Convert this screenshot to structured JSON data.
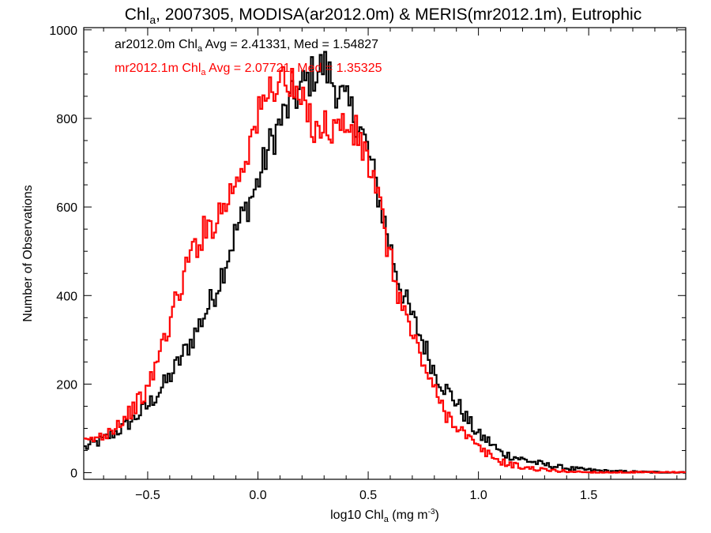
{
  "chart_data": {
    "type": "line",
    "title": {
      "main": "Chl",
      "sub": "a",
      "rest": ", 2007305, MODISA(ar2012.0m) & MERIS(mr2012.1m), Eutrophic"
    },
    "xlabel": {
      "main": "log10 Chl",
      "sub": "a",
      "rest": " (mg m",
      "sup": "-3",
      "end": ")"
    },
    "ylabel": "Number of Observations",
    "xlim": [
      -0.79,
      1.94
    ],
    "ylim": [
      -15,
      1005
    ],
    "x_ticks": [
      -0.5,
      0.0,
      0.5,
      1.0,
      1.5
    ],
    "x_tick_labels": [
      "−0.5",
      "0.0",
      "0.5",
      "1.0",
      "1.5"
    ],
    "y_ticks": [
      0,
      200,
      400,
      600,
      800,
      1000
    ],
    "y_tick_labels": [
      "0",
      "200",
      "400",
      "600",
      "800",
      "1000"
    ],
    "step_histogram": true,
    "series": [
      {
        "name": "ar2012.0m",
        "color": "#000000",
        "stats_label": {
          "prefix": "ar2012.0m Chl",
          "sub": "a",
          "rest": " Avg = 2.41331, Med = 1.54827"
        },
        "points": [
          [
            -0.79,
            55
          ],
          [
            -0.7,
            75
          ],
          [
            -0.6,
            105
          ],
          [
            -0.5,
            150
          ],
          [
            -0.4,
            215
          ],
          [
            -0.3,
            300
          ],
          [
            -0.2,
            400
          ],
          [
            -0.15,
            470
          ],
          [
            -0.1,
            545
          ],
          [
            -0.05,
            600
          ],
          [
            0.0,
            655
          ],
          [
            0.05,
            735
          ],
          [
            0.1,
            790
          ],
          [
            0.15,
            835
          ],
          [
            0.2,
            870
          ],
          [
            0.25,
            900
          ],
          [
            0.3,
            920
          ],
          [
            0.35,
            875
          ],
          [
            0.4,
            830
          ],
          [
            0.45,
            800
          ],
          [
            0.5,
            725
          ],
          [
            0.55,
            620
          ],
          [
            0.6,
            510
          ],
          [
            0.65,
            415
          ],
          [
            0.7,
            350
          ],
          [
            0.75,
            295
          ],
          [
            0.8,
            230
          ],
          [
            0.85,
            190
          ],
          [
            0.9,
            160
          ],
          [
            0.95,
            120
          ],
          [
            1.0,
            85
          ],
          [
            1.05,
            70
          ],
          [
            1.1,
            45
          ],
          [
            1.2,
            30
          ],
          [
            1.3,
            18
          ],
          [
            1.4,
            10
          ],
          [
            1.5,
            6
          ],
          [
            1.6,
            3
          ],
          [
            1.7,
            2
          ],
          [
            1.8,
            1
          ],
          [
            1.94,
            0
          ]
        ]
      },
      {
        "name": "mr2012.1m",
        "color": "#ff0000",
        "stats_label": {
          "prefix": "mr2012.1m Chl",
          "sub": "a",
          "rest": " Avg = 2.07721, Med = 1.35325"
        },
        "points": [
          [
            -0.79,
            65
          ],
          [
            -0.7,
            85
          ],
          [
            -0.6,
            125
          ],
          [
            -0.5,
            185
          ],
          [
            -0.45,
            265
          ],
          [
            -0.4,
            340
          ],
          [
            -0.35,
            420
          ],
          [
            -0.3,
            500
          ],
          [
            -0.25,
            540
          ],
          [
            -0.2,
            570
          ],
          [
            -0.15,
            605
          ],
          [
            -0.1,
            660
          ],
          [
            -0.05,
            725
          ],
          [
            0.0,
            800
          ],
          [
            0.05,
            860
          ],
          [
            0.1,
            895
          ],
          [
            0.15,
            870
          ],
          [
            0.2,
            830
          ],
          [
            0.25,
            790
          ],
          [
            0.3,
            780
          ],
          [
            0.35,
            780
          ],
          [
            0.4,
            785
          ],
          [
            0.45,
            760
          ],
          [
            0.5,
            705
          ],
          [
            0.55,
            605
          ],
          [
            0.6,
            480
          ],
          [
            0.65,
            385
          ],
          [
            0.7,
            310
          ],
          [
            0.75,
            250
          ],
          [
            0.8,
            185
          ],
          [
            0.85,
            135
          ],
          [
            0.9,
            110
          ],
          [
            0.95,
            80
          ],
          [
            1.0,
            55
          ],
          [
            1.05,
            40
          ],
          [
            1.1,
            25
          ],
          [
            1.2,
            12
          ],
          [
            1.3,
            6
          ],
          [
            1.4,
            3
          ],
          [
            1.5,
            1
          ],
          [
            1.94,
            0
          ]
        ]
      }
    ]
  }
}
